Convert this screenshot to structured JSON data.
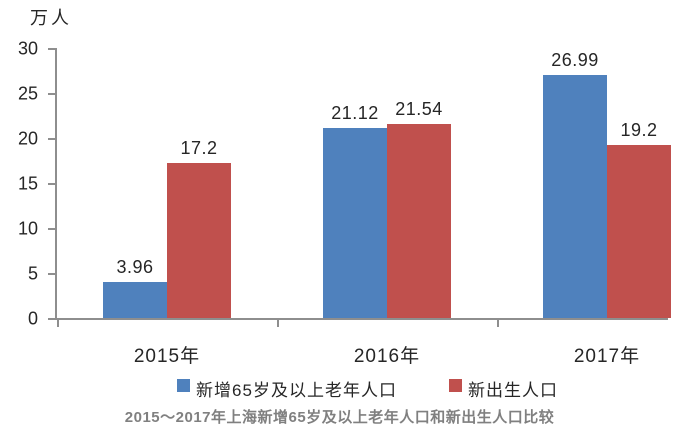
{
  "chart_data": {
    "type": "bar",
    "title": "2015～2017年上海新增65岁及以上老年人口和新出生人口比较",
    "ylabel": "万人",
    "xlabel": "",
    "categories": [
      "2015年",
      "2016年",
      "2017年"
    ],
    "series": [
      {
        "name": "新增65岁及以上老年人口",
        "color": "#4F81BD",
        "values": [
          3.96,
          21.12,
          26.99
        ]
      },
      {
        "name": "新出生人口",
        "color": "#C0504D",
        "values": [
          17.2,
          21.54,
          19.2
        ]
      }
    ],
    "ylim": [
      0,
      30
    ],
    "yticks": [
      0,
      5,
      10,
      15,
      20,
      25,
      30
    ],
    "grid": false,
    "legend_position": "bottom",
    "value_labels": true,
    "axis_color": "#8E8E8E",
    "label_color": "#262626",
    "caption_color": "#808080"
  }
}
